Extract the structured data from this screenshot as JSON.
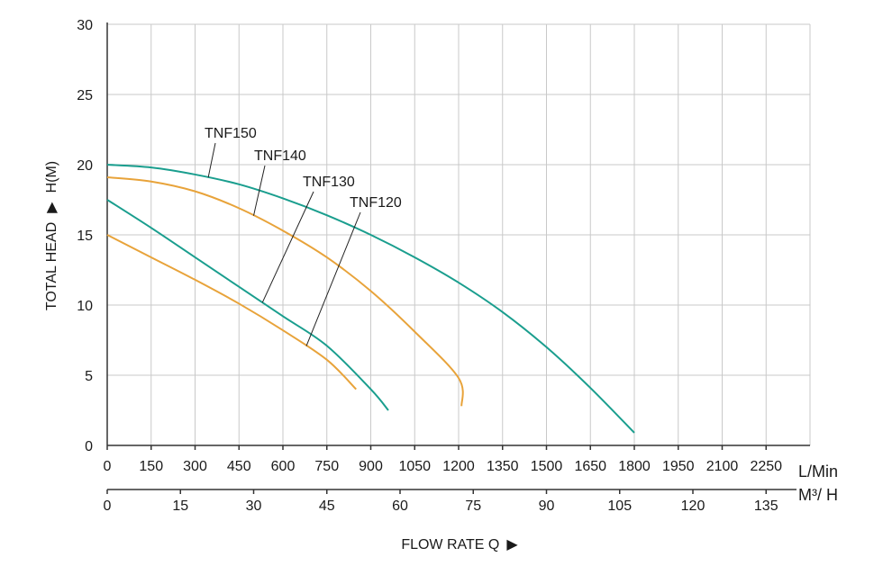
{
  "chart_data": {
    "type": "line",
    "ylabel": "TOTAL HEAD",
    "ylabel_unit": "H(M)",
    "xlabel": "FLOW RATE Q",
    "ylim": [
      0,
      30
    ],
    "y_ticks": [
      "0",
      "5",
      "10",
      "15",
      "20",
      "25",
      "30"
    ],
    "x_primary": {
      "unit": "L/Min",
      "range": [
        0,
        2400
      ],
      "ticks": [
        "0",
        "150",
        "300",
        "450",
        "600",
        "750",
        "900",
        "1050",
        "1200",
        "1350",
        "1500",
        "1650",
        "1800",
        "1950",
        "2100",
        "2250"
      ]
    },
    "x_secondary": {
      "unit": "M³/ H",
      "ticks": [
        "0",
        "15",
        "30",
        "45",
        "60",
        "75",
        "90",
        "105",
        "120",
        "135"
      ]
    },
    "grid": true,
    "series": [
      {
        "name": "TNF150",
        "color": "#1a9e8e",
        "points": [
          [
            0,
            20.0
          ],
          [
            150,
            19.8
          ],
          [
            300,
            19.3
          ],
          [
            450,
            18.6
          ],
          [
            600,
            17.6
          ],
          [
            750,
            16.4
          ],
          [
            900,
            15.0
          ],
          [
            1050,
            13.4
          ],
          [
            1200,
            11.6
          ],
          [
            1350,
            9.5
          ],
          [
            1500,
            7.0
          ],
          [
            1650,
            4.1
          ],
          [
            1800,
            0.9
          ]
        ]
      },
      {
        "name": "TNF140",
        "color": "#e8a33a",
        "points": [
          [
            0,
            19.1
          ],
          [
            150,
            18.8
          ],
          [
            300,
            18.1
          ],
          [
            450,
            16.9
          ],
          [
            600,
            15.3
          ],
          [
            750,
            13.4
          ],
          [
            900,
            11.0
          ],
          [
            1050,
            8.1
          ],
          [
            1200,
            4.8
          ],
          [
            1210,
            2.8
          ]
        ]
      },
      {
        "name": "TNF130",
        "color": "#1a9e8e",
        "points": [
          [
            0,
            17.5
          ],
          [
            150,
            15.5
          ],
          [
            300,
            13.4
          ],
          [
            450,
            11.3
          ],
          [
            600,
            9.2
          ],
          [
            750,
            7.1
          ],
          [
            900,
            4.0
          ],
          [
            960,
            2.5
          ]
        ]
      },
      {
        "name": "TNF120",
        "color": "#e8a33a",
        "points": [
          [
            0,
            15.0
          ],
          [
            150,
            13.4
          ],
          [
            300,
            11.8
          ],
          [
            450,
            10.1
          ],
          [
            600,
            8.2
          ],
          [
            750,
            6.1
          ],
          [
            850,
            4.0
          ]
        ]
      }
    ],
    "annotations": [
      {
        "text": "TNF150",
        "series": "TNF150",
        "anchor_x": 345
      },
      {
        "text": "TNF140",
        "series": "TNF140",
        "anchor_x": 500
      },
      {
        "text": "TNF130",
        "series": "TNF130",
        "anchor_x": 530
      },
      {
        "text": "TNF120",
        "series": "TNF120",
        "anchor_x": 680
      }
    ]
  }
}
